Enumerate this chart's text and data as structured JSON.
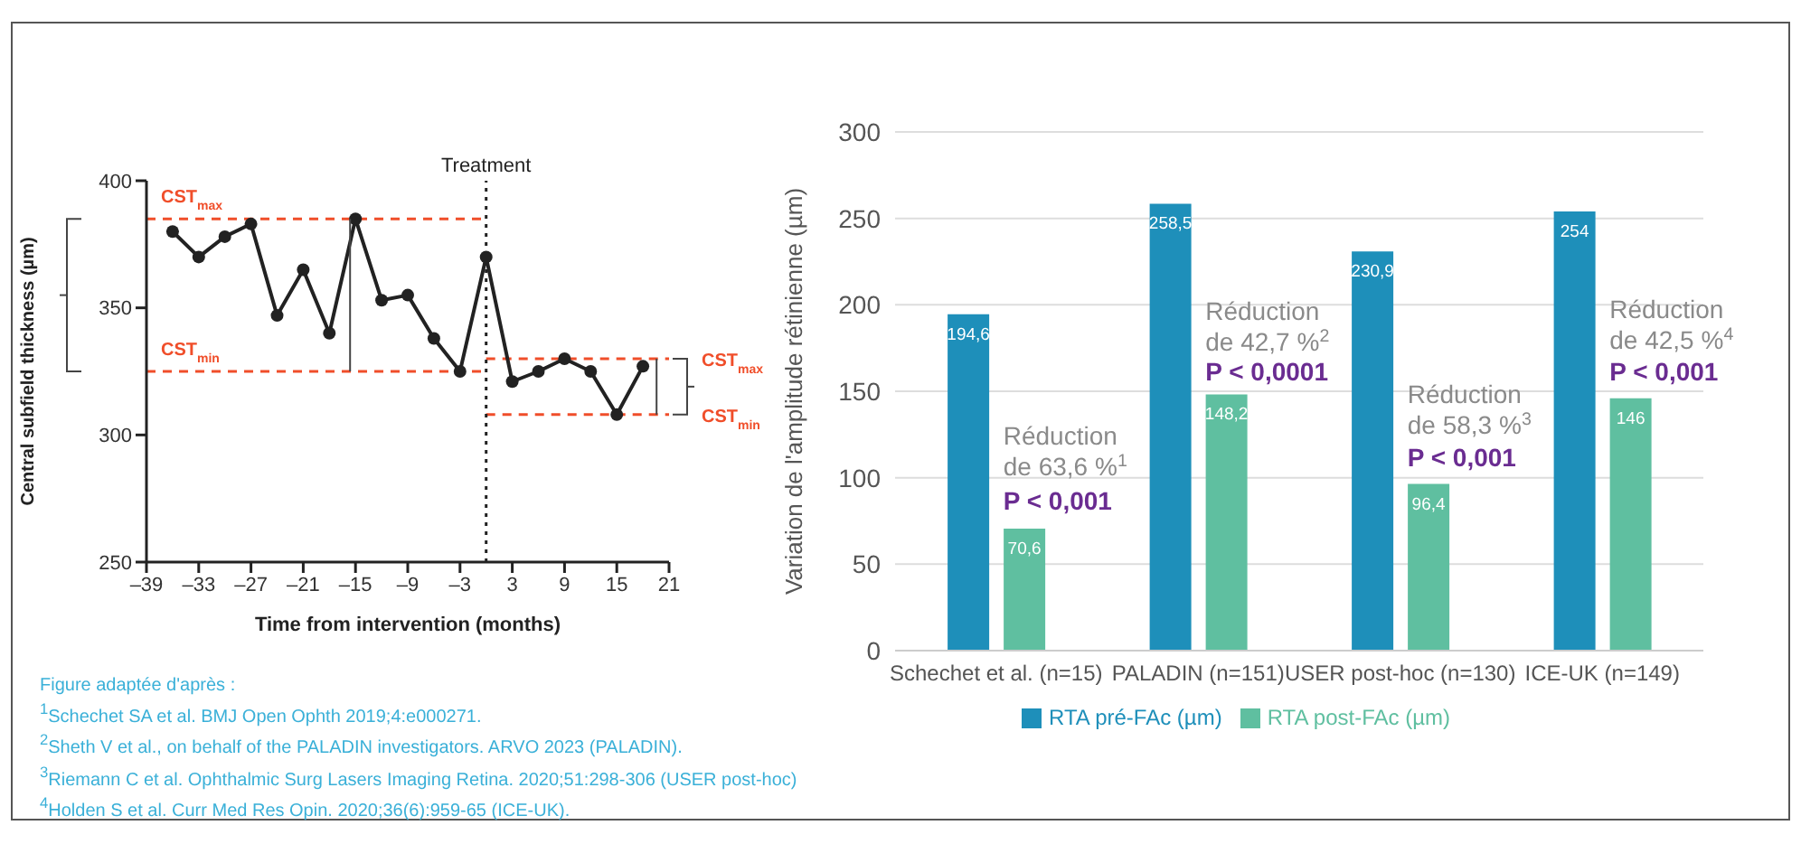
{
  "chart_data": [
    {
      "type": "line",
      "xlabel": "Time from intervention (months)",
      "ylabel": "Central subfield thickness (µm)",
      "x": [
        -36,
        -33,
        -30,
        -27,
        -24,
        -21,
        -18,
        -15,
        -12,
        -9,
        -6,
        -3,
        0,
        3,
        6,
        9,
        12,
        15,
        18
      ],
      "series": [
        {
          "color": "#222222",
          "values": [
            380,
            370,
            378,
            383,
            347,
            365,
            340,
            385,
            353,
            355,
            338,
            325,
            370,
            321,
            325,
            330,
            325,
            308,
            327
          ]
        }
      ],
      "xlim": [
        -39,
        21
      ],
      "xticks": [
        {
          "value": -39,
          "label": "–39"
        },
        {
          "value": -33,
          "label": "–33"
        },
        {
          "value": -27,
          "label": "–27"
        },
        {
          "value": -21,
          "label": "–21"
        },
        {
          "value": -15,
          "label": "–15"
        },
        {
          "value": -9,
          "label": "–9"
        },
        {
          "value": -3,
          "label": "–3"
        },
        3,
        9,
        15,
        21
      ],
      "ylim": [
        250,
        400
      ],
      "yticks": [
        250,
        300,
        350,
        400
      ],
      "ref_lines": [
        {
          "axis": "y",
          "value": 385,
          "label": "CST$_{max}$",
          "color": "#f04e2a",
          "line_style": "dashed"
        },
        {
          "axis": "y",
          "value": 325,
          "label": "CST$_{min}$",
          "color": "#f04e2a",
          "line_style": "dashed"
        },
        {
          "axis": "y",
          "value": 330,
          "label": "CST$_{max}$",
          "color": "#f04e2a",
          "line_style": "dashed"
        },
        {
          "axis": "y",
          "value": 308,
          "label": "CST$_{min}$",
          "color": "#f04e2a",
          "line_style": "dashed"
        },
        {
          "axis": "x",
          "value": 0,
          "label": "Treatment",
          "color": "#222222",
          "line_style": "dotted"
        }
      ],
      "marker": "circle",
      "grid": false,
      "legend": false,
      "annotations": [
        "Figure adaptée d'après :",
        "$^{1}$Schechet SA et al. BMJ Open Ophth 2019;4:e000271.",
        "$^{2}$Sheth V et al., on behalf of the PALADIN investigators. ARVO 2023 (PALADIN).",
        "$^{3}$Riemann C et al. Ophthalmic Surg Lasers Imaging Retina. 2020;51:298-306 (USER post-hoc)",
        "$^{4}$Holden S et al. Curr Med Res Opin. 2020;36(6):959-65 (ICE-UK)."
      ]
    },
    {
      "type": "bar",
      "ylabel": "Variation de l'amplitude rétinienne (µm)",
      "categories": [
        "Schechet et al. (n=15)",
        "PALADIN (n=151)",
        "USER post-hoc (n=130)",
        "ICE-UK (n=149)"
      ],
      "series": [
        {
          "name": "RTA pré-FAc (µm)",
          "color": "#1e8fba",
          "values": [
            194.6,
            258.5,
            230.9,
            254
          ],
          "value_labels": [
            "194,6",
            "258,5",
            "230,9",
            "254"
          ]
        },
        {
          "name": "RTA post-FAc (µm)",
          "color": "#5fbfa0",
          "values": [
            70.6,
            148.2,
            96.4,
            146
          ],
          "value_labels": [
            "70,6",
            "148,2",
            "96,4",
            "146"
          ]
        }
      ],
      "ylim": [
        0,
        300
      ],
      "yticks": [
        0,
        50,
        100,
        150,
        200,
        250,
        300
      ],
      "grid": "y",
      "legend": "bottom",
      "annotations": [
        {
          "text": "Réduction de 63,6 %$^{1}$",
          "x": "Schechet et al. (n=15)",
          "y": 133
        },
        {
          "text": "P < 0,001",
          "x": "Schechet et al. (n=15)",
          "y": 95
        },
        {
          "text": "Réduction de 42,7 %$^{2}$",
          "x": "PALADIN (n=151)",
          "y": 205
        },
        {
          "text": "P < 0,0001",
          "x": "PALADIN (n=151)",
          "y": 170
        },
        {
          "text": "Réduction de 58,3 %$^{3}$",
          "x": "USER post-hoc (n=130)",
          "y": 157
        },
        {
          "text": "P < 0,001",
          "x": "USER post-hoc (n=130)",
          "y": 120
        },
        {
          "text": "Réduction de 42,5 %$^{4}$",
          "x": "ICE-UK (n=149)",
          "y": 206
        },
        {
          "text": "P < 0,001",
          "x": "ICE-UK (n=149)",
          "y": 170
        }
      ]
    }
  ]
}
